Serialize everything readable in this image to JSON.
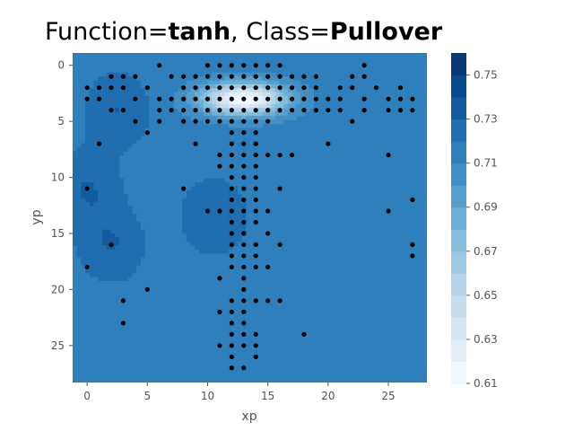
{
  "chart_data": {
    "type": "contour",
    "title": {
      "prefix": "Function=",
      "function": "tanh",
      "separator": ", Class=",
      "class": "Pullover"
    },
    "xlabel": "xp",
    "ylabel": "yp",
    "xlim": [
      -1.2,
      28.2
    ],
    "ylim": [
      28.3,
      -1.1
    ],
    "y_inverted": true,
    "grid": false,
    "x_ticks": [
      0,
      5,
      10,
      15,
      20,
      25
    ],
    "y_ticks": [
      0,
      5,
      10,
      15,
      20,
      25
    ],
    "colorbar": {
      "cmap": "Blues",
      "min": 0.61,
      "max": 0.76,
      "levels": [
        0.61,
        0.62,
        0.63,
        0.64,
        0.65,
        0.66,
        0.67,
        0.68,
        0.69,
        0.7,
        0.71,
        0.72,
        0.73,
        0.74,
        0.75,
        0.76
      ],
      "tick_labels": [
        "0.61",
        "0.63",
        "0.65",
        "0.67",
        "0.69",
        "0.71",
        "0.73",
        "0.75"
      ]
    },
    "base_value": 0.715,
    "peak": {
      "x": 13,
      "y": 3,
      "value": 0.61
    },
    "low_regions": [
      {
        "x": 10.5,
        "y": 13.5,
        "value": 0.73
      },
      {
        "x": 0,
        "y": 11,
        "value": 0.73
      },
      {
        "x": 2,
        "y": 16,
        "value": 0.73
      },
      {
        "x": 2.5,
        "y": 4,
        "value": 0.73
      }
    ],
    "points": [
      [
        6,
        0
      ],
      [
        10,
        0
      ],
      [
        11,
        0
      ],
      [
        12,
        0
      ],
      [
        13,
        0
      ],
      [
        14,
        0
      ],
      [
        15,
        0
      ],
      [
        16,
        0
      ],
      [
        23,
        0
      ],
      [
        2,
        1
      ],
      [
        3,
        1
      ],
      [
        4,
        1
      ],
      [
        7,
        1
      ],
      [
        8,
        1
      ],
      [
        9,
        1
      ],
      [
        10,
        1
      ],
      [
        11,
        1
      ],
      [
        12,
        1
      ],
      [
        13,
        1
      ],
      [
        14,
        1
      ],
      [
        15,
        1
      ],
      [
        16,
        1
      ],
      [
        17,
        1
      ],
      [
        18,
        1
      ],
      [
        19,
        1
      ],
      [
        22,
        1
      ],
      [
        23,
        1
      ],
      [
        0,
        2
      ],
      [
        1,
        2
      ],
      [
        2,
        2
      ],
      [
        3,
        2
      ],
      [
        5,
        2
      ],
      [
        8,
        2
      ],
      [
        9,
        2
      ],
      [
        10,
        2
      ],
      [
        11,
        2
      ],
      [
        12,
        2
      ],
      [
        13,
        2
      ],
      [
        14,
        2
      ],
      [
        15,
        2
      ],
      [
        16,
        2
      ],
      [
        17,
        2
      ],
      [
        18,
        2
      ],
      [
        19,
        2
      ],
      [
        21,
        2
      ],
      [
        22,
        2
      ],
      [
        24,
        2
      ],
      [
        26,
        2
      ],
      [
        0,
        3
      ],
      [
        1,
        3
      ],
      [
        4,
        3
      ],
      [
        6,
        3
      ],
      [
        7,
        3
      ],
      [
        8,
        3
      ],
      [
        9,
        3
      ],
      [
        10,
        3
      ],
      [
        11,
        3
      ],
      [
        12,
        3
      ],
      [
        13,
        3
      ],
      [
        14,
        3
      ],
      [
        15,
        3
      ],
      [
        16,
        3
      ],
      [
        17,
        3
      ],
      [
        18,
        3
      ],
      [
        19,
        3
      ],
      [
        20,
        3
      ],
      [
        21,
        3
      ],
      [
        23,
        3
      ],
      [
        25,
        3
      ],
      [
        26,
        3
      ],
      [
        27,
        3
      ],
      [
        2,
        4
      ],
      [
        3,
        4
      ],
      [
        6,
        4
      ],
      [
        7,
        4
      ],
      [
        8,
        4
      ],
      [
        9,
        4
      ],
      [
        10,
        4
      ],
      [
        11,
        4
      ],
      [
        12,
        4
      ],
      [
        13,
        4
      ],
      [
        14,
        4
      ],
      [
        15,
        4
      ],
      [
        16,
        4
      ],
      [
        17,
        4
      ],
      [
        18,
        4
      ],
      [
        19,
        4
      ],
      [
        20,
        4
      ],
      [
        21,
        4
      ],
      [
        23,
        4
      ],
      [
        25,
        4
      ],
      [
        26,
        4
      ],
      [
        27,
        4
      ],
      [
        4,
        5
      ],
      [
        6,
        5
      ],
      [
        8,
        5
      ],
      [
        9,
        5
      ],
      [
        10,
        5
      ],
      [
        11,
        5
      ],
      [
        12,
        5
      ],
      [
        13,
        5
      ],
      [
        14,
        5
      ],
      [
        15,
        5
      ],
      [
        22,
        5
      ],
      [
        5,
        6
      ],
      [
        12,
        6
      ],
      [
        13,
        6
      ],
      [
        14,
        6
      ],
      [
        1,
        7
      ],
      [
        9,
        7
      ],
      [
        12,
        7
      ],
      [
        13,
        7
      ],
      [
        14,
        7
      ],
      [
        20,
        7
      ],
      [
        11,
        8
      ],
      [
        12,
        8
      ],
      [
        13,
        8
      ],
      [
        14,
        8
      ],
      [
        15,
        8
      ],
      [
        16,
        8
      ],
      [
        17,
        8
      ],
      [
        25,
        8
      ],
      [
        11,
        9
      ],
      [
        12,
        9
      ],
      [
        13,
        9
      ],
      [
        14,
        9
      ],
      [
        12,
        10
      ],
      [
        13,
        10
      ],
      [
        14,
        10
      ],
      [
        0,
        11
      ],
      [
        8,
        11
      ],
      [
        12,
        11
      ],
      [
        13,
        11
      ],
      [
        14,
        11
      ],
      [
        16,
        11
      ],
      [
        12,
        12
      ],
      [
        13,
        12
      ],
      [
        14,
        12
      ],
      [
        27,
        12
      ],
      [
        10,
        13
      ],
      [
        11,
        13
      ],
      [
        12,
        13
      ],
      [
        13,
        13
      ],
      [
        14,
        13
      ],
      [
        15,
        13
      ],
      [
        25,
        13
      ],
      [
        12,
        14
      ],
      [
        13,
        14
      ],
      [
        14,
        14
      ],
      [
        12,
        15
      ],
      [
        13,
        15
      ],
      [
        15,
        15
      ],
      [
        2,
        16
      ],
      [
        12,
        16
      ],
      [
        13,
        16
      ],
      [
        14,
        16
      ],
      [
        16,
        16
      ],
      [
        27,
        16
      ],
      [
        12,
        17
      ],
      [
        13,
        17
      ],
      [
        14,
        17
      ],
      [
        27,
        17
      ],
      [
        0,
        18
      ],
      [
        12,
        18
      ],
      [
        13,
        18
      ],
      [
        14,
        18
      ],
      [
        15,
        18
      ],
      [
        11,
        19
      ],
      [
        13,
        19
      ],
      [
        5,
        20
      ],
      [
        13,
        20
      ],
      [
        3,
        21
      ],
      [
        12,
        21
      ],
      [
        13,
        21
      ],
      [
        14,
        21
      ],
      [
        15,
        21
      ],
      [
        16,
        21
      ],
      [
        11,
        22
      ],
      [
        12,
        22
      ],
      [
        13,
        22
      ],
      [
        3,
        23
      ],
      [
        12,
        23
      ],
      [
        13,
        23
      ],
      [
        12,
        24
      ],
      [
        13,
        24
      ],
      [
        14,
        24
      ],
      [
        18,
        24
      ],
      [
        11,
        25
      ],
      [
        12,
        25
      ],
      [
        13,
        25
      ],
      [
        14,
        25
      ],
      [
        12,
        26
      ],
      [
        14,
        26
      ],
      [
        12,
        27
      ],
      [
        13,
        27
      ]
    ]
  }
}
